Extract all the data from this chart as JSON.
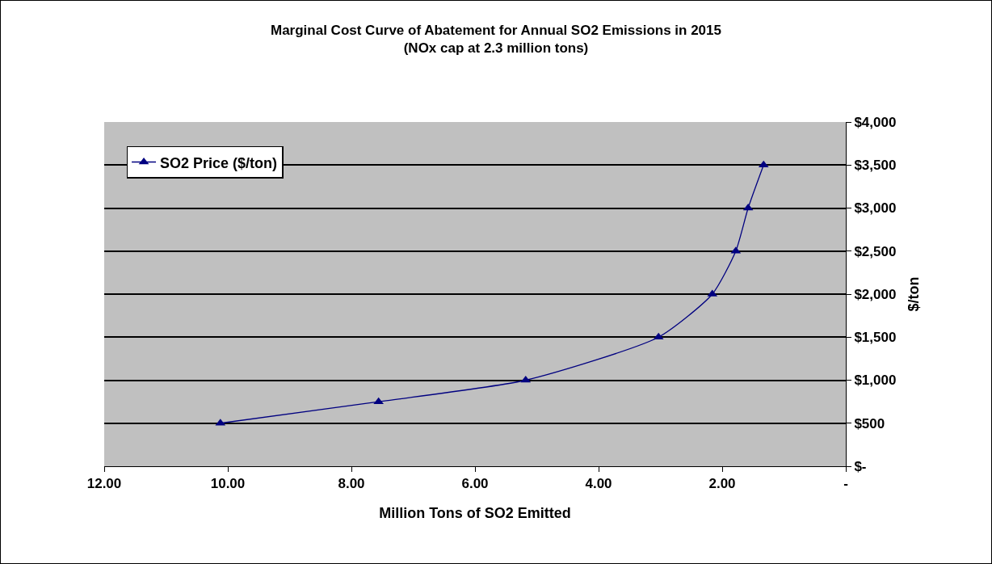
{
  "chart_data": {
    "type": "line",
    "title": "Marginal Cost Curve of Abatement for Annual SO2 Emissions in 2015",
    "subtitle": "(NOx cap at 2.3 million tons)",
    "xlabel": "Million Tons of SO2 Emitted",
    "ylabel": "$/ton",
    "x": [
      10.12,
      7.56,
      5.18,
      3.03,
      2.16,
      1.78,
      1.58,
      1.33
    ],
    "series": [
      {
        "name": "SO2 Price ($/ton)",
        "color": "#000080",
        "values": [
          500,
          750,
          1000,
          1500,
          2000,
          2500,
          3000,
          3500
        ]
      }
    ],
    "xlim": [
      12,
      0
    ],
    "xticks": [
      {
        "value": 12,
        "label": "12.00"
      },
      {
        "value": 10,
        "label": "10.00"
      },
      {
        "value": 8,
        "label": "8.00"
      },
      {
        "value": 6,
        "label": "6.00"
      },
      {
        "value": 4,
        "label": "4.00"
      },
      {
        "value": 2,
        "label": "2.00"
      },
      {
        "value": 0,
        "label": "-"
      }
    ],
    "ylim": [
      0,
      4000
    ],
    "yticks": [
      {
        "value": 0,
        "label": "$-"
      },
      {
        "value": 500,
        "label": "$500"
      },
      {
        "value": 1000,
        "label": "$1,000"
      },
      {
        "value": 1500,
        "label": "$1,500"
      },
      {
        "value": 2000,
        "label": "$2,000"
      },
      {
        "value": 2500,
        "label": "$2,500"
      },
      {
        "value": 3000,
        "label": "$3,000"
      },
      {
        "value": 3500,
        "label": "$3,500"
      },
      {
        "value": 4000,
        "label": "$4,000"
      }
    ],
    "grid": "y",
    "legend": "top left",
    "marker": "triangle",
    "line_style": "solid"
  }
}
